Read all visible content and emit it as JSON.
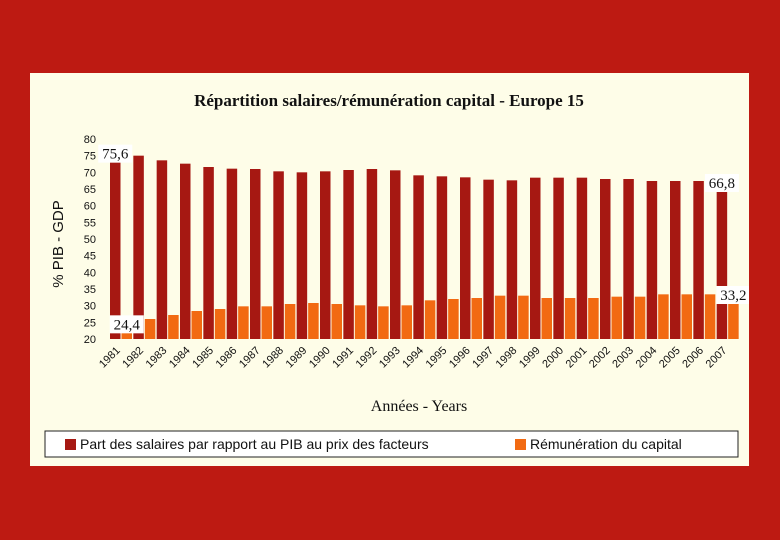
{
  "chart_data": {
    "type": "bar",
    "title": "Répartition salaires/rémunération capital - Europe 15",
    "xlabel": "Années - Years",
    "ylabel": "% PIB - GDP",
    "ylim": [
      20,
      80
    ],
    "yticks": [
      "20",
      "25",
      "30",
      "35",
      "40",
      "45",
      "50",
      "55",
      "60",
      "65",
      "70",
      "75",
      "80"
    ],
    "grid": false,
    "legend_position": "bottom",
    "categories": [
      "1981",
      "1982",
      "1983",
      "1984",
      "1985",
      "1986",
      "1987",
      "1988",
      "1989",
      "1990",
      "1991",
      "1992",
      "1993",
      "1994",
      "1995",
      "1996",
      "1997",
      "1998",
      "1999",
      "2000",
      "2001",
      "2002",
      "2003",
      "2004",
      "2005",
      "2006",
      "2007"
    ],
    "series": [
      {
        "name": "Part des salaires par rapport au PIB au prix des facteurs",
        "color": "#a61812",
        "values": [
          75.6,
          75.0,
          73.6,
          72.6,
          71.6,
          71.1,
          71.0,
          70.3,
          70.0,
          70.3,
          70.7,
          71.0,
          70.6,
          69.1,
          68.8,
          68.5,
          67.8,
          67.6,
          68.4,
          68.4,
          68.4,
          68.0,
          68.0,
          67.4,
          67.4,
          67.4,
          66.8
        ]
      },
      {
        "name": "Rémunération du capital",
        "color": "#f26a12",
        "values": [
          24.4,
          26.0,
          27.2,
          28.4,
          29.0,
          29.8,
          29.8,
          30.5,
          30.8,
          30.5,
          30.1,
          29.8,
          30.1,
          31.6,
          32.0,
          32.3,
          33.0,
          33.0,
          32.3,
          32.3,
          32.3,
          32.7,
          32.7,
          33.4,
          33.4,
          33.4,
          33.2
        ]
      }
    ],
    "data_labels": [
      {
        "series": 0,
        "index": 0,
        "text": "75,6"
      },
      {
        "series": 1,
        "index": 0,
        "text": "24,4"
      },
      {
        "series": 0,
        "index": 26,
        "text": "66,8"
      },
      {
        "series": 1,
        "index": 26,
        "text": "33,2"
      }
    ]
  }
}
